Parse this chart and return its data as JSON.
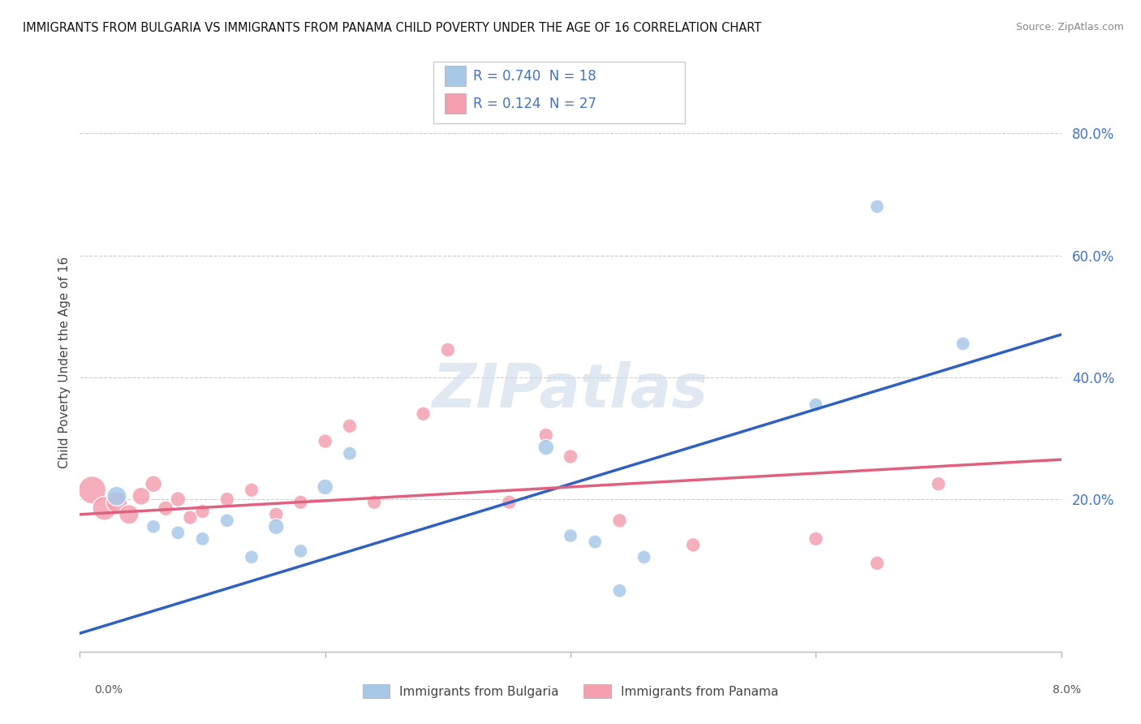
{
  "title": "IMMIGRANTS FROM BULGARIA VS IMMIGRANTS FROM PANAMA CHILD POVERTY UNDER THE AGE OF 16 CORRELATION CHART",
  "source": "Source: ZipAtlas.com",
  "ylabel": "Child Poverty Under the Age of 16",
  "background_color": "#ffffff",
  "watermark": "ZIPatlas",
  "legend_R1": "R = 0.740",
  "legend_N1": "N = 18",
  "legend_R2": "R = 0.124",
  "legend_N2": "N = 27",
  "legend_label1": "Immigrants from Bulgaria",
  "legend_label2": "Immigrants from Panama",
  "blue_color": "#a8c8e8",
  "pink_color": "#f4a0b0",
  "blue_line_color": "#3060c0",
  "pink_line_color": "#e06080",
  "tick_color": "#4472c4",
  "ytick_labels": [
    "20.0%",
    "40.0%",
    "60.0%",
    "80.0%"
  ],
  "ytick_values": [
    0.2,
    0.4,
    0.6,
    0.8
  ],
  "xlim": [
    0.0,
    0.08
  ],
  "ylim": [
    -0.05,
    0.9
  ],
  "blue_scatter_x": [
    0.003,
    0.006,
    0.008,
    0.01,
    0.012,
    0.014,
    0.016,
    0.018,
    0.02,
    0.022,
    0.038,
    0.04,
    0.042,
    0.044,
    0.046,
    0.06,
    0.065,
    0.072
  ],
  "blue_scatter_y": [
    0.205,
    0.155,
    0.145,
    0.135,
    0.165,
    0.105,
    0.155,
    0.115,
    0.22,
    0.275,
    0.285,
    0.14,
    0.13,
    0.05,
    0.105,
    0.355,
    0.68,
    0.455
  ],
  "blue_scatter_sizes": [
    300,
    150,
    150,
    150,
    150,
    150,
    200,
    150,
    200,
    150,
    200,
    150,
    150,
    150,
    150,
    150,
    150,
    150
  ],
  "pink_scatter_x": [
    0.001,
    0.002,
    0.003,
    0.004,
    0.005,
    0.006,
    0.007,
    0.008,
    0.009,
    0.01,
    0.012,
    0.014,
    0.016,
    0.018,
    0.02,
    0.022,
    0.024,
    0.028,
    0.03,
    0.035,
    0.038,
    0.04,
    0.044,
    0.05,
    0.06,
    0.065,
    0.07
  ],
  "pink_scatter_y": [
    0.215,
    0.185,
    0.195,
    0.175,
    0.205,
    0.225,
    0.185,
    0.2,
    0.17,
    0.18,
    0.2,
    0.215,
    0.175,
    0.195,
    0.295,
    0.32,
    0.195,
    0.34,
    0.445,
    0.195,
    0.305,
    0.27,
    0.165,
    0.125,
    0.135,
    0.095,
    0.225
  ],
  "pink_scatter_sizes": [
    600,
    450,
    350,
    300,
    250,
    220,
    180,
    180,
    160,
    160,
    160,
    160,
    160,
    160,
    160,
    160,
    160,
    160,
    160,
    160,
    160,
    160,
    160,
    160,
    160,
    160,
    160
  ],
  "blue_line_x": [
    0.0,
    0.08
  ],
  "blue_line_y": [
    -0.02,
    0.47
  ],
  "pink_line_x": [
    0.0,
    0.08
  ],
  "pink_line_y": [
    0.175,
    0.265
  ],
  "xtick_positions": [
    0.0,
    0.02,
    0.04,
    0.06,
    0.08
  ],
  "grid_color": "#cccccc",
  "grid_linestyle": "--",
  "grid_linewidth": 0.8
}
